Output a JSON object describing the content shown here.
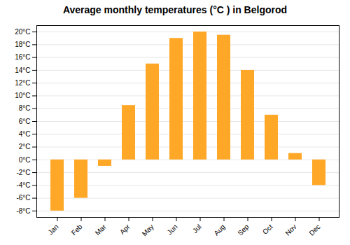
{
  "chart_data": {
    "type": "bar",
    "title": "Average monthly temperatures (°C ) in Belgorod",
    "categories": [
      "Jan",
      "Feb",
      "Mar",
      "Apr",
      "May",
      "Jun",
      "Jul",
      "Aug",
      "Sep",
      "Oct",
      "Nov",
      "Dec"
    ],
    "values": [
      -8,
      -6,
      -1,
      8.5,
      15,
      19,
      20,
      19.5,
      14,
      7,
      1,
      -4
    ],
    "color": "#FFA726",
    "ylim": [
      -9,
      21
    ],
    "yticks": [
      {
        "value": -8,
        "label": "-8°C"
      },
      {
        "value": -6,
        "label": "-6°C"
      },
      {
        "value": -4,
        "label": "-4°C"
      },
      {
        "value": -2,
        "label": "-2°C"
      },
      {
        "value": 0,
        "label": "0°C"
      },
      {
        "value": 2,
        "label": "2°C"
      },
      {
        "value": 4,
        "label": "4°C"
      },
      {
        "value": 6,
        "label": "6°C"
      },
      {
        "value": 8,
        "label": "8°C"
      },
      {
        "value": 10,
        "label": "10°C"
      },
      {
        "value": 12,
        "label": "12°C"
      },
      {
        "value": 14,
        "label": "14°C"
      },
      {
        "value": 16,
        "label": "16°C"
      },
      {
        "value": 18,
        "label": "18°C"
      },
      {
        "value": 20,
        "label": "20°C"
      }
    ],
    "grid": true
  }
}
